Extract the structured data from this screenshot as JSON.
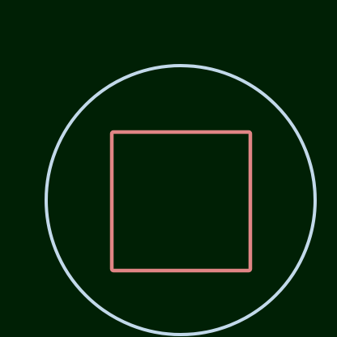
{
  "colors": {
    "background": "#002005",
    "circle_stroke": "#c2d9ea",
    "square_stroke": "#e08585"
  },
  "shapes": [
    {
      "kind": "circle",
      "name": "outer-circle",
      "stroke": "#c2d9ea"
    },
    {
      "kind": "square",
      "name": "inner-square",
      "stroke": "#e08585"
    }
  ]
}
